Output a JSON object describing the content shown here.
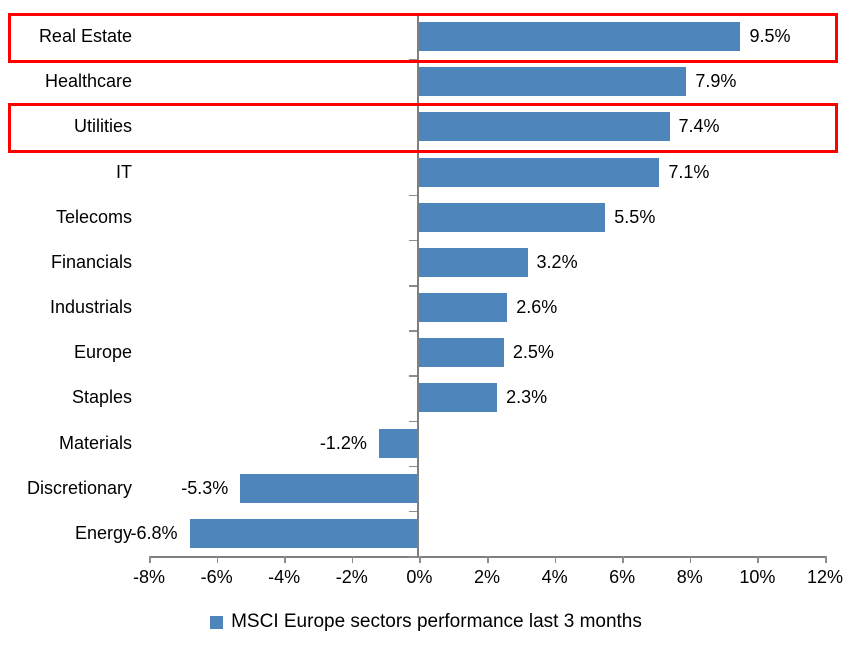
{
  "chart_data": {
    "type": "bar",
    "orientation": "horizontal",
    "title": "",
    "xlabel": "",
    "ylabel": "",
    "categories": [
      "Real Estate",
      "Healthcare",
      "Utilities",
      "IT",
      "Telecoms",
      "Financials",
      "Industrials",
      "Europe",
      "Staples",
      "Materials",
      "Discretionary",
      "Energy"
    ],
    "values": [
      9.5,
      7.9,
      7.4,
      7.1,
      5.5,
      3.2,
      2.6,
      2.5,
      2.3,
      -1.2,
      -5.3,
      -6.8
    ],
    "data_labels": [
      "9.5%",
      "7.9%",
      "7.4%",
      "7.1%",
      "5.5%",
      "3.2%",
      "2.6%",
      "2.5%",
      "2.3%",
      "-1.2%",
      "-5.3%",
      "-6.8%"
    ],
    "xlim": [
      -8,
      12
    ],
    "x_tick_step": 2,
    "x_tick_labels": [
      "-8%",
      "-6%",
      "-4%",
      "-2%",
      "0%",
      "2%",
      "4%",
      "6%",
      "8%",
      "10%",
      "12%"
    ],
    "grid": false,
    "legend": "MSCI Europe sectors performance last 3 months",
    "legend_position": "bottom",
    "bar_color": "#4E86BC",
    "axis_color": "#7F7F7F",
    "tick_color": "#8C8C8C",
    "highlight_color": "#FF0000",
    "highlighted_categories": [
      "Real Estate",
      "Utilities"
    ]
  }
}
